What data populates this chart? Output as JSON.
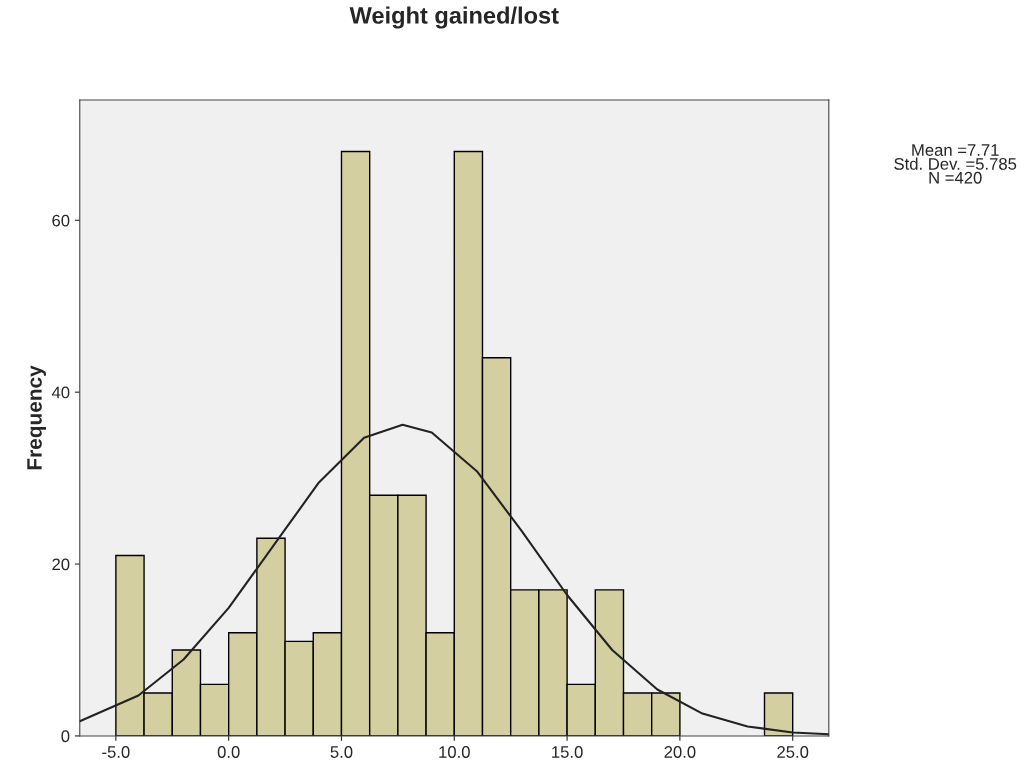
{
  "chart_data": {
    "type": "histogram",
    "title": "Weight gained/lost",
    "ylabel": "Frequency",
    "bins": [
      -5,
      -3.75,
      -2.5,
      -1.25,
      0,
      1.25,
      2.5,
      3.75,
      5,
      6.25,
      7.5,
      8.75,
      10,
      11.25,
      12.5,
      13.75,
      15,
      16.25,
      17.5,
      18.75,
      20,
      21.25,
      22.5,
      23.75,
      25
    ],
    "values": [
      21,
      5,
      10,
      6,
      12,
      23,
      11,
      12,
      68,
      28,
      28,
      12,
      68,
      44,
      17,
      17,
      6,
      17,
      5,
      5,
      0,
      0,
      0,
      5
    ],
    "color": "#d4cfa0",
    "series": [
      {
        "type": "line",
        "color": "#222222",
        "x": [
          -6.6,
          -4,
          -2,
          0,
          2,
          4,
          6,
          7.71,
          9,
          11,
          13,
          15,
          17,
          19,
          21,
          23,
          25,
          26.6
        ],
        "values": [
          1.7,
          4.7,
          8.9,
          14.9,
          22.2,
          29.5,
          34.7,
          36.2,
          35.3,
          30.8,
          23.8,
          16.4,
          10.0,
          5.4,
          2.6,
          1.1,
          0.4,
          0.2
        ]
      }
    ],
    "xlim": [
      -6.6,
      26.6
    ],
    "ylim": [
      0,
      74
    ],
    "xticks": [
      {
        "value": -5,
        "label": "-5.0"
      },
      {
        "value": 0,
        "label": "0.0"
      },
      {
        "value": 5,
        "label": "5.0"
      },
      {
        "value": 10,
        "label": "10.0"
      },
      {
        "value": 15,
        "label": "15.0"
      },
      {
        "value": 20,
        "label": "20.0"
      },
      {
        "value": 25,
        "label": "25.0"
      }
    ],
    "yticks": [
      0,
      20,
      40,
      60
    ],
    "annotations": [
      "Mean =7.71",
      "Std. Dev. =5.785",
      "N =420"
    ],
    "grid": false,
    "legend": false
  }
}
